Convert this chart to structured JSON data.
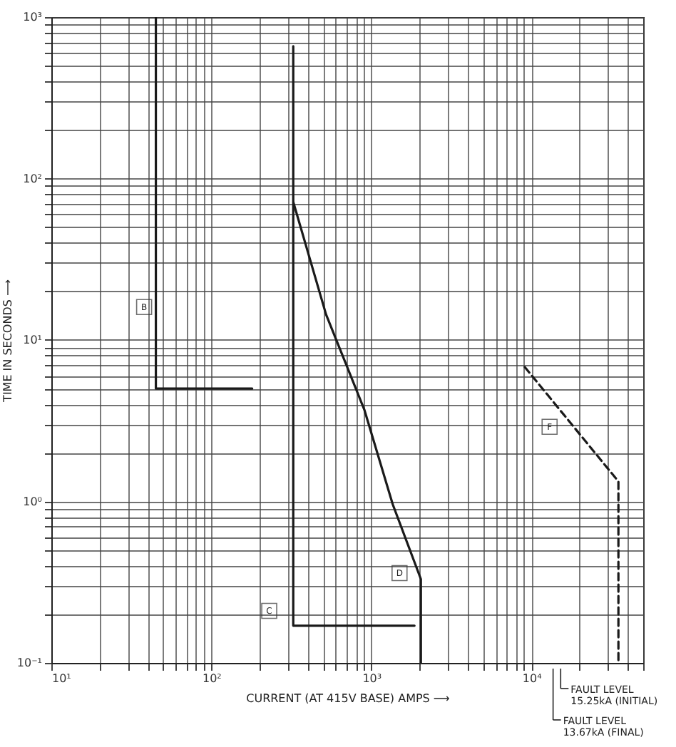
{
  "chart_data": {
    "type": "line",
    "xlabel": "CURRENT (AT 415V BASE) AMPS ⟶",
    "ylabel": "TIME IN SECONDS ⟶",
    "log": "xy",
    "grid": true,
    "xlim": [
      10,
      50000
    ],
    "ylim": [
      0.1,
      1000
    ],
    "xticks": [
      {
        "value": 10,
        "label": "10¹"
      },
      {
        "value": 20,
        "label": null
      },
      {
        "value": 30,
        "label": null
      },
      {
        "value": 40,
        "label": null
      },
      {
        "value": 50,
        "label": null
      },
      {
        "value": 60,
        "label": null
      },
      {
        "value": 70,
        "label": null
      },
      {
        "value": 80,
        "label": null
      },
      {
        "value": 90,
        "label": null
      },
      {
        "value": 100,
        "label": "10²"
      },
      {
        "value": 200,
        "label": null
      },
      {
        "value": 300,
        "label": null
      },
      {
        "value": 400,
        "label": null
      },
      {
        "value": 500,
        "label": null
      },
      {
        "value": 600,
        "label": null
      },
      {
        "value": 700,
        "label": null
      },
      {
        "value": 800,
        "label": null
      },
      {
        "value": 900,
        "label": null
      },
      {
        "value": 1000,
        "label": "10³"
      },
      {
        "value": 2000,
        "label": null
      },
      {
        "value": 3000,
        "label": null
      },
      {
        "value": 4000,
        "label": null
      },
      {
        "value": 5000,
        "label": null
      },
      {
        "value": 6000,
        "label": null
      },
      {
        "value": 7000,
        "label": null
      },
      {
        "value": 8000,
        "label": null
      },
      {
        "value": 9000,
        "label": null
      },
      {
        "value": 10000,
        "label": "10⁴"
      },
      {
        "value": 20000,
        "label": null
      },
      {
        "value": 30000,
        "label": null
      },
      {
        "value": 40000,
        "label": null
      },
      {
        "value": 50000,
        "label": null
      }
    ],
    "yticks": [
      {
        "value": 0.1,
        "label": "10⁻¹"
      },
      {
        "value": 0.2,
        "label": null
      },
      {
        "value": 0.3,
        "label": null
      },
      {
        "value": 0.4,
        "label": null
      },
      {
        "value": 0.5,
        "label": null
      },
      {
        "value": 0.6,
        "label": null
      },
      {
        "value": 0.7,
        "label": null
      },
      {
        "value": 0.8,
        "label": null
      },
      {
        "value": 0.9,
        "label": null
      },
      {
        "value": 1,
        "label": "10⁰"
      },
      {
        "value": 2,
        "label": null
      },
      {
        "value": 3,
        "label": null
      },
      {
        "value": 4,
        "label": null
      },
      {
        "value": 5,
        "label": null
      },
      {
        "value": 6,
        "label": null
      },
      {
        "value": 7,
        "label": null
      },
      {
        "value": 8,
        "label": null
      },
      {
        "value": 9,
        "label": null
      },
      {
        "value": 10,
        "label": "10¹"
      },
      {
        "value": 20,
        "label": null
      },
      {
        "value": 30,
        "label": null
      },
      {
        "value": 40,
        "label": null
      },
      {
        "value": 50,
        "label": null
      },
      {
        "value": 60,
        "label": null
      },
      {
        "value": 70,
        "label": null
      },
      {
        "value": 80,
        "label": null
      },
      {
        "value": 90,
        "label": null
      },
      {
        "value": 100,
        "label": "10²"
      },
      {
        "value": 200,
        "label": null
      },
      {
        "value": 300,
        "label": null
      },
      {
        "value": 400,
        "label": null
      },
      {
        "value": 500,
        "label": null
      },
      {
        "value": 600,
        "label": null
      },
      {
        "value": 700,
        "label": null
      },
      {
        "value": 800,
        "label": null
      },
      {
        "value": 900,
        "label": null
      },
      {
        "value": 1000,
        "label": "10³"
      }
    ],
    "series": [
      {
        "color": "#1a1a1a",
        "line_style": "solid",
        "x": [
          45,
          45,
          180
        ],
        "values": [
          1000,
          5.0,
          5.0
        ]
      },
      {
        "color": "#1a1a1a",
        "line_style": "solid",
        "x": [
          325,
          325,
          1860
        ],
        "values": [
          660,
          0.17,
          0.17
        ]
      },
      {
        "color": "#1a1a1a",
        "line_style": "solid",
        "x": [
          326,
          521,
          904,
          1360,
          2040,
          2040
        ],
        "values": [
          71,
          14.4,
          3.7,
          0.96,
          0.33,
          0.1
        ]
      },
      {
        "color": "#1a1a1a",
        "line_style": "dashed",
        "x": [
          9100,
          35000,
          35000
        ],
        "values": [
          6.8,
          1.33,
          0.1
        ]
      }
    ],
    "annotations": [
      {
        "text": "B",
        "x": 38,
        "y": 16
      },
      {
        "text": "C",
        "x": 230,
        "y": 0.21
      },
      {
        "text": "D",
        "x": 1500,
        "y": 0.36
      },
      {
        "text": "F",
        "x": 13000,
        "y": 2.9
      }
    ],
    "ref_lines": [
      {
        "axis": "x",
        "value": 15250,
        "label": "FAULT LEVEL\n15.25kA (INITIAL)"
      },
      {
        "axis": "x",
        "value": 13670,
        "label": "FAULT LEVEL\n13.67kA (FINAL)"
      }
    ]
  }
}
